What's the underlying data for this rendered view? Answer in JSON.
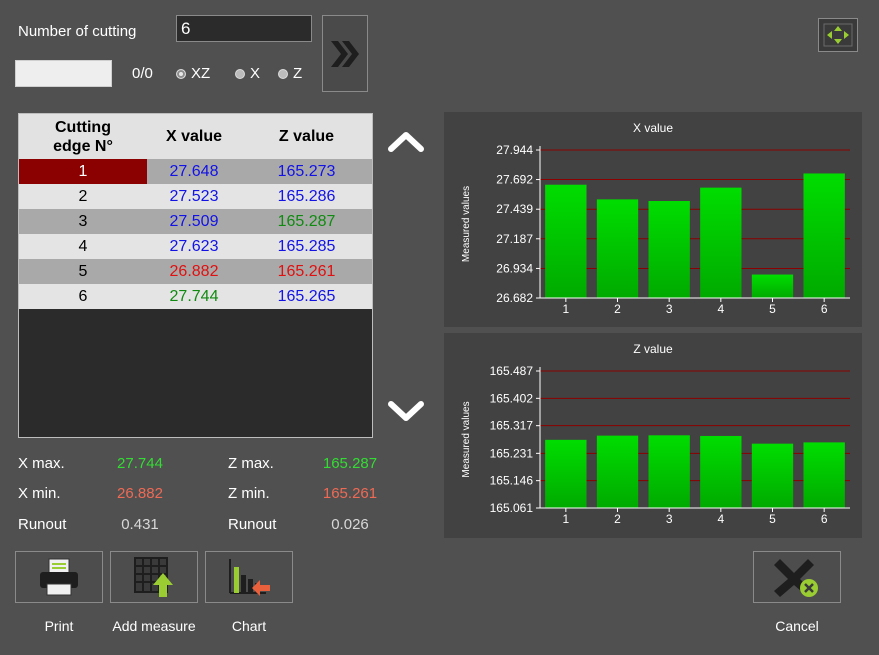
{
  "header": {
    "cutting_count_label": "Number of cutting",
    "cutting_count_value": "6",
    "counter": "0/0",
    "blank_value": "",
    "modes": [
      {
        "label": "XZ",
        "selected": true
      },
      {
        "label": "X",
        "selected": false
      },
      {
        "label": "Z",
        "selected": false
      }
    ],
    "go_icon": "double-chevron-right-icon",
    "nav_icon": "four-way-arrows-icon"
  },
  "table": {
    "headers": [
      "Cutting edge N°",
      "X value",
      "Z value"
    ],
    "rows": [
      {
        "edge": "1",
        "x": "27.648",
        "z": "165.273",
        "x_color": "blue",
        "z_color": "blue",
        "selected": true
      },
      {
        "edge": "2",
        "x": "27.523",
        "z": "165.286",
        "x_color": "blue",
        "z_color": "blue",
        "selected": false
      },
      {
        "edge": "3",
        "x": "27.509",
        "z": "165.287",
        "x_color": "blue",
        "z_color": "green",
        "selected": false
      },
      {
        "edge": "4",
        "x": "27.623",
        "z": "165.285",
        "x_color": "blue",
        "z_color": "blue",
        "selected": false
      },
      {
        "edge": "5",
        "x": "26.882",
        "z": "165.261",
        "x_color": "red",
        "z_color": "red",
        "selected": false
      },
      {
        "edge": "6",
        "x": "27.744",
        "z": "165.265",
        "x_color": "green",
        "z_color": "blue",
        "selected": false
      }
    ]
  },
  "scroll": {
    "up_icon": "chevron-up-icon",
    "down_icon": "chevron-down-icon"
  },
  "stats": {
    "x_max_label": "X max.",
    "x_max": "27.744",
    "x_min_label": "X min.",
    "x_min": "26.882",
    "x_runout_label": "Runout",
    "x_runout": "0.431",
    "z_max_label": "Z max.",
    "z_max": "165.287",
    "z_min_label": "Z min.",
    "z_min": "165.261",
    "z_runout_label": "Runout",
    "z_runout": "0.026",
    "max_color": "#33dd33",
    "min_color": "#ee6a55"
  },
  "toolbar": {
    "print_label": "Print",
    "add_measure_label": "Add measure",
    "chart_label": "Chart",
    "cancel_label": "Cancel"
  },
  "chart_data": [
    {
      "type": "bar",
      "title": "X value",
      "ylabel": "Measured values",
      "categories": [
        "1",
        "2",
        "3",
        "4",
        "5",
        "6"
      ],
      "values": [
        27.648,
        27.523,
        27.509,
        27.623,
        26.882,
        27.744
      ],
      "yticks": [
        "26.682",
        "26.934",
        "27.187",
        "27.439",
        "27.692",
        "27.944"
      ],
      "ylim": [
        26.682,
        27.944
      ],
      "grid_color": "#8b0000",
      "bar_color_top": "#00dd00",
      "bar_color_bottom": "#00aa00"
    },
    {
      "type": "bar",
      "title": "Z value",
      "ylabel": "Measured values",
      "categories": [
        "1",
        "2",
        "3",
        "4",
        "5",
        "6"
      ],
      "values": [
        165.273,
        165.286,
        165.287,
        165.285,
        165.261,
        165.265
      ],
      "yticks": [
        "165.061",
        "165.146",
        "165.231",
        "165.317",
        "165.402",
        "165.487"
      ],
      "ylim": [
        165.061,
        165.487
      ],
      "grid_color": "#8b0000",
      "bar_color_top": "#00dd00",
      "bar_color_bottom": "#00aa00"
    }
  ]
}
